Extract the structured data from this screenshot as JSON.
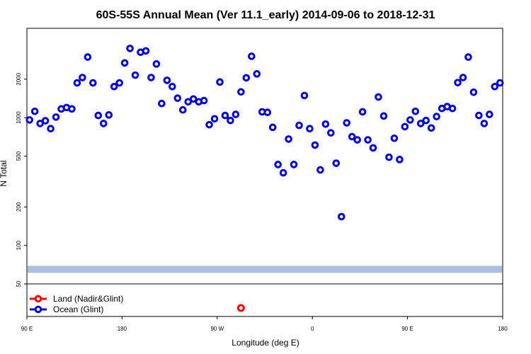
{
  "chart_data": {
    "type": "scatter",
    "title": "60S-55S Annual Mean (Ver 11.1_early)   2014-09-06 to 2018-12-31",
    "xlabel": "Longitude (deg E)",
    "ylabel": "N Total",
    "y_scale": "log",
    "ylim": [
      50,
      5000
    ],
    "y_ticks": [
      50,
      100,
      200,
      500,
      1000,
      2000
    ],
    "y_tick_labels": [
      "50",
      "100",
      "200",
      "500",
      "1000",
      "2000"
    ],
    "x_ticks": [
      90,
      180,
      270,
      360,
      450,
      540
    ],
    "x_tick_labels": [
      "90 E",
      "180",
      "90 W",
      "0",
      "90 E",
      "180"
    ],
    "xlim": [
      90,
      540
    ],
    "band": {
      "y_center": 65,
      "color": "#a9bee0"
    },
    "series": [
      {
        "name": "Land (Nadir&Glint)",
        "color": "#ff0000",
        "points": [
          {
            "x": 292.5,
            "y": null
          }
        ]
      },
      {
        "name": "Ocean (Glint)",
        "color": "#0000dd",
        "points": [
          {
            "x": 92.5,
            "y": 960
          },
          {
            "x": 97.5,
            "y": 1120
          },
          {
            "x": 102.5,
            "y": 900
          },
          {
            "x": 107.5,
            "y": 945
          },
          {
            "x": 112.5,
            "y": 820
          },
          {
            "x": 117.5,
            "y": 1010
          },
          {
            "x": 122.5,
            "y": 1170
          },
          {
            "x": 127.5,
            "y": 1200
          },
          {
            "x": 132.5,
            "y": 1170
          },
          {
            "x": 137.5,
            "y": 1870
          },
          {
            "x": 142.5,
            "y": 2060
          },
          {
            "x": 147.5,
            "y": 2980
          },
          {
            "x": 152.5,
            "y": 1870
          },
          {
            "x": 157.5,
            "y": 1040
          },
          {
            "x": 162.5,
            "y": 900
          },
          {
            "x": 167.5,
            "y": 1050
          },
          {
            "x": 172.5,
            "y": 1750
          },
          {
            "x": 177.5,
            "y": 1870
          },
          {
            "x": 182.5,
            "y": 2680
          },
          {
            "x": 187.5,
            "y": 3480
          },
          {
            "x": 192.5,
            "y": 2150
          },
          {
            "x": 197.5,
            "y": 3250
          },
          {
            "x": 202.5,
            "y": 3330
          },
          {
            "x": 207.5,
            "y": 2060
          },
          {
            "x": 212.5,
            "y": 2630
          },
          {
            "x": 217.5,
            "y": 1290
          },
          {
            "x": 222.5,
            "y": 1960
          },
          {
            "x": 227.5,
            "y": 1750
          },
          {
            "x": 232.5,
            "y": 1420
          },
          {
            "x": 237.5,
            "y": 1150
          },
          {
            "x": 242.5,
            "y": 1330
          },
          {
            "x": 247.5,
            "y": 1400
          },
          {
            "x": 252.5,
            "y": 1330
          },
          {
            "x": 257.5,
            "y": 1360
          },
          {
            "x": 262.5,
            "y": 880
          },
          {
            "x": 267.5,
            "y": 980
          },
          {
            "x": 272.5,
            "y": 1900
          },
          {
            "x": 277.5,
            "y": 1040
          },
          {
            "x": 282.5,
            "y": 950
          },
          {
            "x": 287.5,
            "y": 1060
          },
          {
            "x": 292.5,
            "y": 1590
          },
          {
            "x": 297.5,
            "y": 2050
          },
          {
            "x": 302.5,
            "y": 3020
          },
          {
            "x": 307.5,
            "y": 2200
          },
          {
            "x": 312.5,
            "y": 1110
          },
          {
            "x": 317.5,
            "y": 1100
          },
          {
            "x": 322.5,
            "y": 840
          },
          {
            "x": 327.5,
            "y": 430
          },
          {
            "x": 332.5,
            "y": 370
          },
          {
            "x": 337.5,
            "y": 680
          },
          {
            "x": 342.5,
            "y": 430
          },
          {
            "x": 347.5,
            "y": 870
          },
          {
            "x": 352.5,
            "y": 1490
          },
          {
            "x": 357.5,
            "y": 820
          },
          {
            "x": 362.5,
            "y": 610
          },
          {
            "x": 367.5,
            "y": 390
          },
          {
            "x": 372.5,
            "y": 890
          },
          {
            "x": 377.5,
            "y": 760
          },
          {
            "x": 382.5,
            "y": 440
          },
          {
            "x": 387.5,
            "y": 168
          },
          {
            "x": 392.5,
            "y": 910
          },
          {
            "x": 397.5,
            "y": 710
          },
          {
            "x": 402.5,
            "y": 670
          },
          {
            "x": 407.5,
            "y": 1110
          },
          {
            "x": 412.5,
            "y": 670
          },
          {
            "x": 417.5,
            "y": 580
          },
          {
            "x": 422.5,
            "y": 1450
          },
          {
            "x": 427.5,
            "y": 1030
          },
          {
            "x": 432.5,
            "y": 490
          },
          {
            "x": 437.5,
            "y": 690
          },
          {
            "x": 442.5,
            "y": 470
          },
          {
            "x": 447.5,
            "y": 850
          },
          {
            "x": 452.5,
            "y": 960
          },
          {
            "x": 457.5,
            "y": 1120
          },
          {
            "x": 462.5,
            "y": 900
          },
          {
            "x": 467.5,
            "y": 950
          },
          {
            "x": 472.5,
            "y": 830
          },
          {
            "x": 477.5,
            "y": 1020
          },
          {
            "x": 482.5,
            "y": 1180
          },
          {
            "x": 487.5,
            "y": 1220
          },
          {
            "x": 492.5,
            "y": 1180
          },
          {
            "x": 497.5,
            "y": 1880
          },
          {
            "x": 502.5,
            "y": 2060
          },
          {
            "x": 507.5,
            "y": 2980
          },
          {
            "x": 512.5,
            "y": 1580
          },
          {
            "x": 517.5,
            "y": 1040
          },
          {
            "x": 522.5,
            "y": 900
          },
          {
            "x": 527.5,
            "y": 1060
          },
          {
            "x": 532.5,
            "y": 1750
          },
          {
            "x": 537.5,
            "y": 1870
          }
        ]
      }
    ]
  }
}
